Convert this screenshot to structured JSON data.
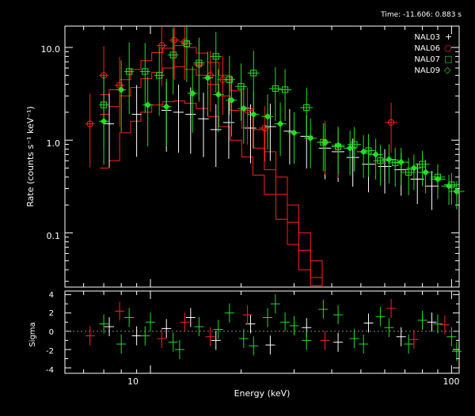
{
  "header": {
    "time_label": "Time: -11.606: 0.883 s"
  },
  "colors": {
    "background": "#000000",
    "foreground": "#ffffff",
    "NAL03": "#ffffff",
    "NAL06": "#ff2020",
    "NAL07": "#20e020",
    "NAL09": "#20e020"
  },
  "chart_data": [
    {
      "type": "scatter",
      "xscale": "log",
      "yscale": "log",
      "xlim": [
        5.2,
        106
      ],
      "ylim": [
        0.026,
        17
      ],
      "xlabel": "Energy (keV)",
      "ylabel": "Rate (counts s⁻¹ keV⁻¹)",
      "x_ticklabels": [
        "10",
        "100"
      ],
      "y_ticklabels": [
        "10.0",
        "1.0",
        "0.1"
      ],
      "legend_position": "top-right",
      "legend": [
        {
          "name": "NAL03",
          "symbol": "+",
          "color": "#ffffff"
        },
        {
          "name": "NAL06",
          "symbol": "○",
          "color": "#ff2020"
        },
        {
          "name": "NAL07",
          "symbol": "□",
          "color": "#20e020"
        },
        {
          "name": "NAL09",
          "symbol": "◇",
          "color": "#20e020"
        }
      ],
      "series": [
        {
          "name": "NAL03",
          "marker": "none",
          "color": "#ffffff",
          "x": [
            7.3,
            9.0,
            11.3,
            12.4,
            13.6,
            15.0,
            16.5,
            18.2,
            21.5,
            25.0,
            29.0,
            33.0,
            38.0,
            42.0,
            47.0,
            53.0,
            60.0,
            68.0,
            77.0,
            86.0
          ],
          "y": [
            1.5,
            1.9,
            2.1,
            2.0,
            1.9,
            1.7,
            1.3,
            1.55,
            1.35,
            1.4,
            1.25,
            1.1,
            0.82,
            0.75,
            0.65,
            0.55,
            0.52,
            0.48,
            0.38,
            0.32
          ]
        },
        {
          "name": "NAL06",
          "marker": "circle",
          "color": "#ff2020",
          "x": [
            6.3,
            7.0,
            7.9,
            10.9,
            12.0,
            13.0,
            14.5,
            15.8,
            17.4,
            21.0,
            24.0,
            38.0,
            42.0,
            63.0
          ],
          "y": [
            1.5,
            5.0,
            3.9,
            10.5,
            12.0,
            11.5,
            6.5,
            5.0,
            4.5,
            2.1,
            1.35,
            0.95,
            0.85,
            1.55
          ]
        },
        {
          "name": "NAL07",
          "marker": "square",
          "color": "#20e020",
          "x": [
            7.0,
            8.5,
            9.6,
            10.7,
            11.9,
            13.2,
            14.5,
            16.5,
            18.3,
            20.0,
            22.0,
            26.0,
            28.0,
            33.0,
            37.5,
            42.0,
            47.5,
            53.0,
            58.0,
            65.0,
            72.0,
            80.0,
            90.0,
            100.0
          ],
          "y": [
            2.4,
            5.5,
            5.5,
            5.0,
            8.3,
            11.0,
            6.8,
            8.0,
            4.5,
            3.8,
            5.3,
            3.6,
            3.5,
            2.25,
            0.95,
            0.85,
            0.9,
            0.77,
            0.6,
            0.57,
            0.45,
            0.55,
            0.4,
            0.33
          ]
        },
        {
          "name": "NAL09",
          "marker": "diamond",
          "color": "#20e020",
          "x": [
            7.0,
            8.0,
            9.8,
            11.3,
            13.8,
            15.5,
            16.8,
            18.6,
            20.4,
            22.0,
            24.5,
            27.0,
            30.0,
            34.0,
            38.0,
            42.0,
            46.0,
            51.0,
            56.0,
            62.0,
            68.0,
            75.0,
            82.0,
            90.0,
            98.0,
            104.0
          ],
          "y": [
            1.6,
            3.5,
            2.4,
            2.3,
            3.2,
            4.7,
            3.1,
            2.7,
            2.2,
            1.9,
            1.8,
            1.5,
            1.2,
            1.05,
            0.95,
            0.88,
            0.82,
            0.75,
            0.7,
            0.62,
            0.58,
            0.5,
            0.45,
            0.38,
            0.32,
            0.28
          ]
        }
      ],
      "model_curves": [
        {
          "x": [
            6.8,
            7.3,
            7.9,
            8.6,
            9.3,
            10.1,
            11.0,
            12.0,
            13.0,
            14.2,
            15.5,
            16.9,
            18.4,
            20.1,
            21.9,
            23.9,
            26.1,
            28.5,
            31.1,
            34.0,
            37.2
          ],
          "y": [
            3.1,
            3.5,
            4.5,
            5.8,
            7.2,
            8.8,
            9.8,
            10.5,
            10.0,
            8.7,
            6.9,
            5.0,
            3.4,
            2.2,
            1.3,
            0.75,
            0.4,
            0.2,
            0.1,
            0.05,
            0.027
          ]
        },
        {
          "x": [
            6.8,
            7.3,
            7.9,
            8.6,
            9.3,
            10.1,
            11.0,
            12.0,
            13.0,
            14.2,
            15.5,
            16.9,
            18.4,
            20.1,
            21.9,
            23.9,
            26.1,
            28.5,
            31.1,
            34.0,
            37.2
          ],
          "y": [
            1.9,
            2.3,
            3.0,
            3.7,
            4.6,
            5.4,
            6.0,
            6.2,
            5.8,
            5.0,
            4.0,
            3.0,
            2.1,
            1.35,
            0.82,
            0.48,
            0.26,
            0.13,
            0.065,
            0.033,
            0.026
          ]
        },
        {
          "x": [
            6.8,
            7.3,
            7.9,
            8.6,
            9.3,
            10.1,
            11.0,
            12.0,
            13.0,
            14.2,
            15.5,
            16.9,
            18.4,
            20.1,
            21.9,
            23.9,
            26.1,
            28.5,
            31.1,
            34.0,
            37.2
          ],
          "y": [
            0.5,
            0.6,
            1.2,
            1.6,
            2.0,
            2.4,
            2.6,
            2.65,
            2.5,
            2.2,
            1.8,
            1.4,
            1.0,
            0.66,
            0.42,
            0.26,
            0.14,
            0.075,
            0.04,
            0.027,
            0.026
          ]
        }
      ]
    },
    {
      "type": "scatter",
      "xscale": "log",
      "xlim": [
        5.2,
        106
      ],
      "ylim": [
        -4.6,
        4.4
      ],
      "ylabel": "Sigma",
      "y_ticklabels": [
        "4",
        "2",
        "0",
        "-2",
        "-4"
      ],
      "residuals": [
        {
          "name": "NAL03",
          "color": "#ffffff",
          "x": [
            7.3,
            9.0,
            11.3,
            13.6,
            16.5,
            21.5,
            25.0,
            33.0,
            42.0,
            53.0,
            68.0,
            86.0
          ],
          "y": [
            0.5,
            -0.5,
            0.3,
            1.5,
            -1.0,
            0.8,
            -1.5,
            0.4,
            -1.2,
            0.9,
            -0.6,
            1.0
          ]
        },
        {
          "name": "NAL06",
          "color": "#ff2020",
          "x": [
            6.3,
            7.9,
            10.9,
            13.0,
            15.8,
            21.0,
            38.0,
            63.0,
            75.0,
            95.0
          ],
          "y": [
            -0.5,
            2.2,
            -0.8,
            1.0,
            -0.6,
            1.8,
            -1.0,
            2.5,
            -0.9,
            0.7
          ]
        },
        {
          "name": "NAL07",
          "color": "#20e020",
          "x": [
            7.0,
            8.5,
            9.6,
            11.9,
            14.5,
            18.3,
            22.0,
            26.0,
            28.0,
            33.0,
            37.5,
            47.5,
            58.0,
            72.0,
            90.0,
            100.0
          ],
          "y": [
            0.8,
            1.5,
            -0.5,
            -1.2,
            0.5,
            2.0,
            -1.6,
            3.0,
            1.0,
            -1.0,
            2.4,
            -0.8,
            1.6,
            -1.4,
            0.8,
            -0.6
          ]
        },
        {
          "name": "NAL09",
          "color": "#20e020",
          "x": [
            8.0,
            10.0,
            12.5,
            16.8,
            20.4,
            24.5,
            30.0,
            42.0,
            51.0,
            62.0,
            80.0,
            104.0
          ],
          "y": [
            -1.4,
            1.0,
            -2.0,
            0.2,
            -0.8,
            1.5,
            0.6,
            1.8,
            -1.4,
            0.4,
            1.2,
            -2.2
          ]
        }
      ]
    }
  ]
}
